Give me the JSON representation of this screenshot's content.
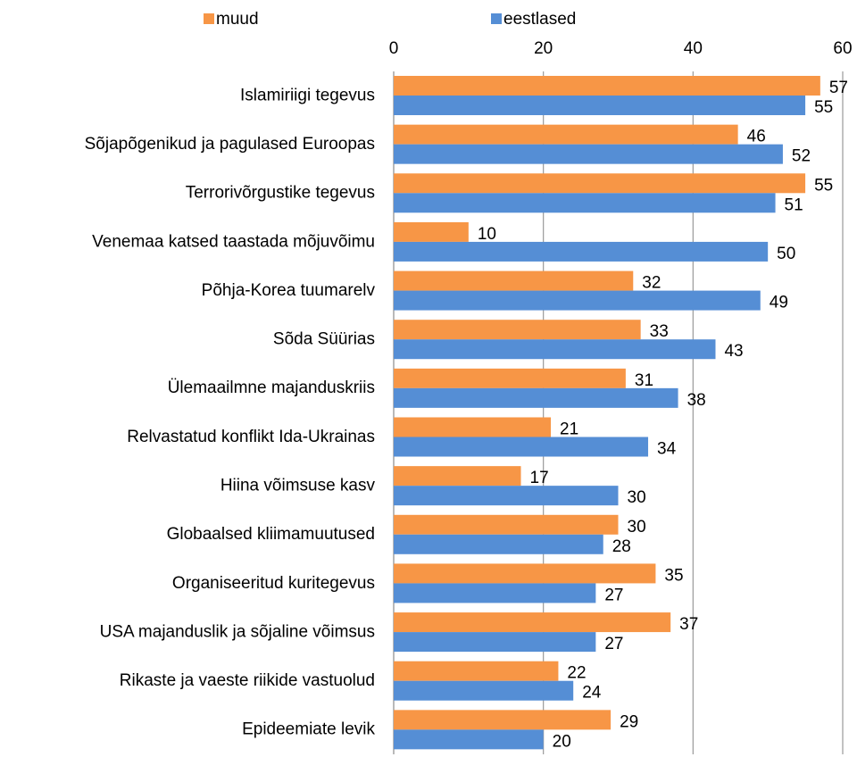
{
  "chart_data": {
    "type": "bar",
    "orientation": "horizontal",
    "categories": [
      "Islamiriigi tegevus",
      "Sõjapõgenikud ja pagulased Euroopas",
      "Terrorivõrgustike tegevus",
      "Venemaa katsed taastada mõjuvõimu",
      "Põhja-Korea tuumarelv",
      "Sõda Süürias",
      "Ülemaailmne majanduskriis",
      "Relvastatud konflikt Ida-Ukrainas",
      "Hiina võimsuse kasv",
      "Globaalsed kliimamuutused",
      "Organiseeritud kuritegevus",
      "USA majanduslik ja sõjaline võimsus",
      "Rikaste ja vaeste riikide vastuolud",
      "Epideemiate levik"
    ],
    "series": [
      {
        "name": "muud",
        "color": "#f79646",
        "values": [
          57,
          46,
          55,
          10,
          32,
          33,
          31,
          21,
          17,
          30,
          35,
          37,
          22,
          29
        ]
      },
      {
        "name": "eestlased",
        "color": "#558ed5",
        "values": [
          55,
          52,
          51,
          50,
          49,
          43,
          38,
          34,
          30,
          28,
          27,
          27,
          24,
          20
        ]
      }
    ],
    "xlim": [
      0,
      60
    ],
    "xticks": [
      0,
      20,
      40,
      60
    ],
    "grid": true,
    "legend": "top"
  }
}
